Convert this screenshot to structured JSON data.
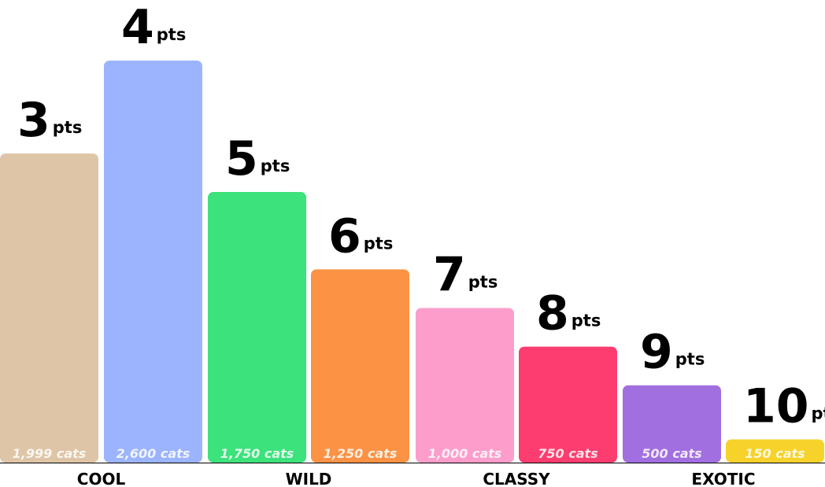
{
  "chart_data": {
    "type": "bar",
    "title": "",
    "xlabel": "",
    "ylabel": "",
    "unit": "pts",
    "categories": [
      "3",
      "4",
      "5",
      "6",
      "7",
      "8",
      "9",
      "10"
    ],
    "values": [
      3,
      4,
      5,
      6,
      7,
      8,
      9,
      10
    ],
    "counts": [
      1999,
      2600,
      1750,
      1250,
      1000,
      750,
      500,
      150
    ],
    "count_labels": [
      "1,999 cats",
      "2,600 cats",
      "1,750 cats",
      "1,250 cats",
      "1,000 cats",
      "750 cats",
      "500 cats",
      "150 cats"
    ],
    "groups": [
      {
        "name": "COOL",
        "bars": [
          0,
          1
        ]
      },
      {
        "name": "WILD",
        "bars": [
          2,
          3
        ]
      },
      {
        "name": "CLASSY",
        "bars": [
          4,
          5
        ]
      },
      {
        "name": "EXOTIC",
        "bars": [
          6,
          7
        ]
      }
    ],
    "colors": [
      "#dfc5a7",
      "#9bb4fd",
      "#3ce27b",
      "#fb9244",
      "#fd9dcb",
      "#fd3d6f",
      "#a16fe0",
      "#f7d22b"
    ],
    "ylim": [
      0,
      2600
    ],
    "grid": false,
    "legend": "none"
  }
}
